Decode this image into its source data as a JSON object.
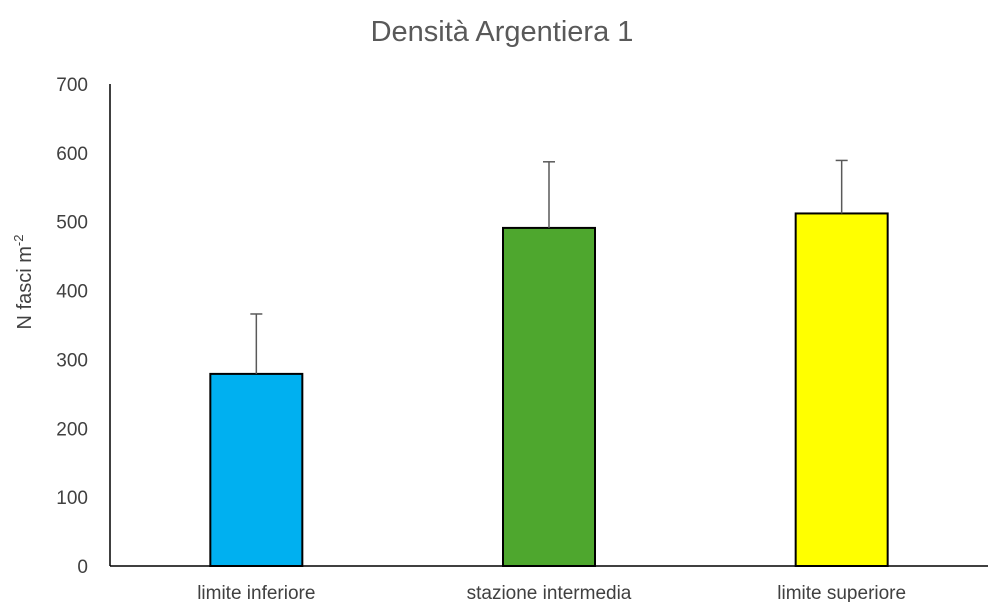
{
  "chart_data": {
    "type": "bar",
    "title": "Densità Argentiera 1",
    "xlabel": "",
    "ylabel": {
      "main": "N fasci  m",
      "superscript": "-2"
    },
    "ylim": [
      0,
      700
    ],
    "yticks": [
      0,
      100,
      200,
      300,
      400,
      500,
      600,
      700
    ],
    "grid": false,
    "categories": [
      "limite inferiore",
      "stazione intermedia",
      "limite superiore"
    ],
    "values": [
      279,
      491,
      512
    ],
    "error_plus": [
      87,
      96,
      77
    ],
    "colors": [
      "#00b0f0",
      "#4ea72e",
      "#ffff00"
    ],
    "bar_edge_color": "#000000",
    "error_bar_color": "#595959",
    "axis_color": "#000000"
  }
}
